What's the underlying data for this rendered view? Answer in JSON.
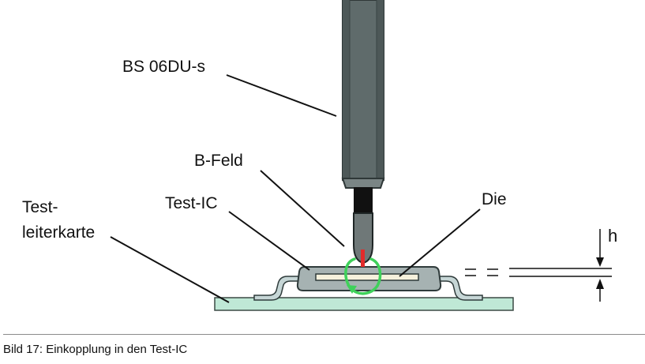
{
  "labels": {
    "probe": "BS 06DU-s",
    "field": "B-Feld",
    "test_ic": "Test-IC",
    "die": "Die",
    "pcb_line1": "Test-",
    "pcb_line2": "leiterkarte",
    "height": "h"
  },
  "caption": "Bild 17: Einkopplung in den Test-IC",
  "colors": {
    "probe_body": "#5f6b6b",
    "probe_dark": "#3d4848",
    "probe_tip": "#111111",
    "probe_tip_light": "#6f7878",
    "field_arrow": "#e32b2b",
    "field_loop": "#3fd15a",
    "ic_body": "#a6b2b2",
    "pins": "#c6d6d6",
    "pcb": "#bfe8d6",
    "die": "#f5f1dc"
  }
}
